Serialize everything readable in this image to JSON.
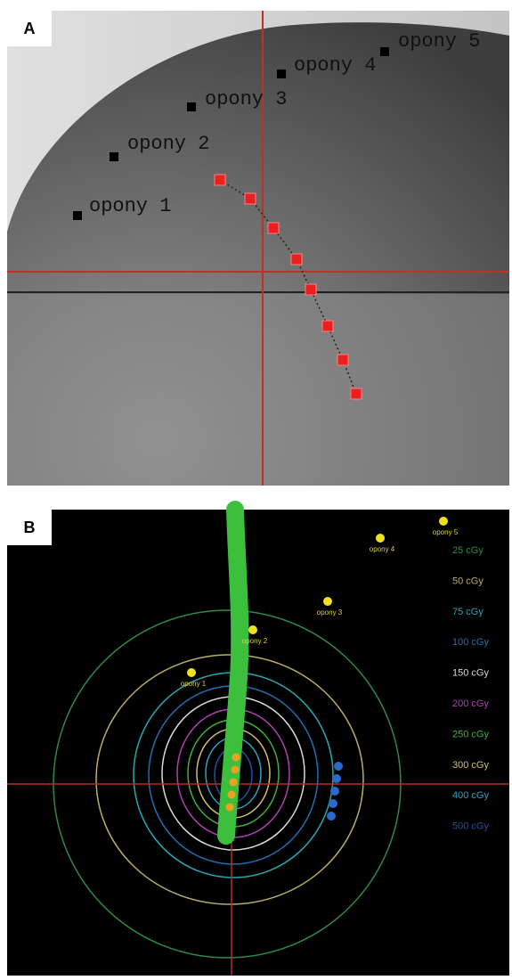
{
  "panels": [
    {
      "label": "A",
      "markers": [
        "opony 1",
        "opony 2",
        "opony 3",
        "opony 4",
        "opony 5"
      ]
    },
    {
      "label": "B",
      "markers": [
        "opony 1",
        "opony 2",
        "opony 3",
        "opony 4",
        "opony 5"
      ],
      "isodose_legend": [
        {
          "label": "25 cGy",
          "color": "#2f8a4a"
        },
        {
          "label": "50 cGy",
          "color": "#b8b060"
        },
        {
          "label": "75 cGy",
          "color": "#2aa6b0"
        },
        {
          "label": "100 cGy",
          "color": "#1f6fb0"
        },
        {
          "label": "150 cGy",
          "color": "#d8d8d8"
        },
        {
          "label": "200 cGy",
          "color": "#b040b0"
        },
        {
          "label": "250 cGy",
          "color": "#40b040"
        },
        {
          "label": "300 cGy",
          "color": "#d0c070"
        },
        {
          "label": "400 cGy",
          "color": "#30a0c0"
        },
        {
          "label": "500 cGy",
          "color": "#2050a0"
        }
      ]
    }
  ]
}
